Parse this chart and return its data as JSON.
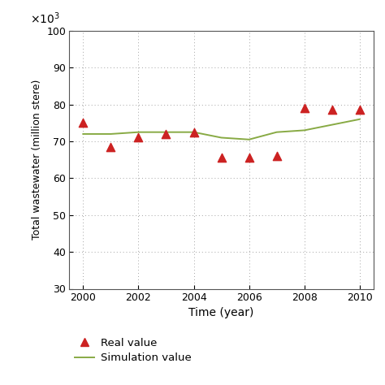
{
  "years": [
    2000,
    2001,
    2002,
    2003,
    2004,
    2005,
    2006,
    2007,
    2008,
    2009,
    2010
  ],
  "real_values": [
    75,
    68.5,
    71,
    72,
    72.5,
    65.5,
    65.5,
    66,
    79,
    78.5,
    78.5
  ],
  "sim_values": [
    72,
    72,
    72.5,
    72.5,
    72.5,
    71,
    70.5,
    72.5,
    73,
    74.5,
    76
  ],
  "xlabel": "Time (year)",
  "ylabel": "Total wastewater (million stere)",
  "ylim": [
    30,
    100
  ],
  "xlim": [
    1999.5,
    2010.5
  ],
  "yticks": [
    30,
    40,
    50,
    60,
    70,
    80,
    90,
    100
  ],
  "xticks": [
    2000,
    2002,
    2004,
    2006,
    2008,
    2010
  ],
  "real_color": "#cc2222",
  "sim_color": "#88aa44",
  "background_color": "#ffffff",
  "grid_color": "#999999",
  "legend_labels": [
    "Real value",
    "Simulation value"
  ]
}
